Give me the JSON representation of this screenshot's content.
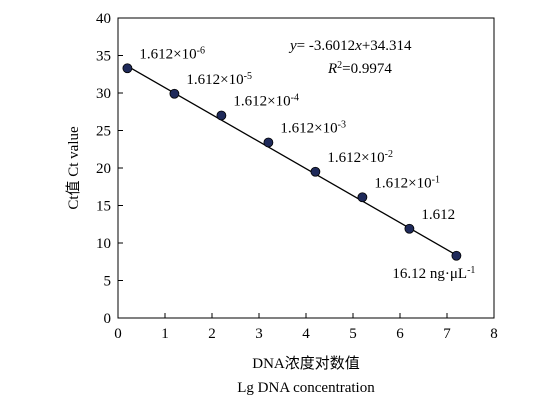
{
  "chart_data": {
    "type": "scatter",
    "xlabel_line1": "DNA浓度对数值",
    "xlabel_line2": "Lg DNA concentration",
    "ylabel": "Ct值 Ct value",
    "xlim": [
      0,
      8
    ],
    "ylim": [
      0,
      40
    ],
    "x_ticks": [
      0,
      1,
      2,
      3,
      4,
      5,
      6,
      7,
      8
    ],
    "y_ticks": [
      0,
      5,
      10,
      15,
      20,
      25,
      30,
      35,
      40
    ],
    "grid": false,
    "legend": "none",
    "marker_color": "#1f2a5a",
    "line_color": "#000000",
    "equation": {
      "y_var": "y",
      "eq_mid": "= -3.6012",
      "x_var": "x",
      "eq_end": "+34.314",
      "r_var": "R",
      "r_exp": "2",
      "r_value": "=0.9974"
    },
    "fit": {
      "slope": -3.6012,
      "intercept": 34.314
    },
    "points": [
      {
        "x": 0.2,
        "y": 33.3,
        "label_base": "1.612×10",
        "label_exp": "-6"
      },
      {
        "x": 1.2,
        "y": 29.9,
        "label_base": "1.612×10",
        "label_exp": "-5"
      },
      {
        "x": 2.2,
        "y": 27.0,
        "label_base": "1.612×10",
        "label_exp": "-4"
      },
      {
        "x": 3.2,
        "y": 23.4,
        "label_base": "1.612×10",
        "label_exp": "-3"
      },
      {
        "x": 4.2,
        "y": 19.5,
        "label_base": "1.612×10",
        "label_exp": "-2"
      },
      {
        "x": 5.2,
        "y": 16.1,
        "label_base": "1.612×10",
        "label_exp": "-1"
      },
      {
        "x": 6.2,
        "y": 11.9,
        "label_base": "1.612",
        "label_exp": ""
      },
      {
        "x": 7.2,
        "y": 8.3,
        "label_base": "16.12 ng·μL",
        "label_exp": "-1"
      }
    ]
  }
}
